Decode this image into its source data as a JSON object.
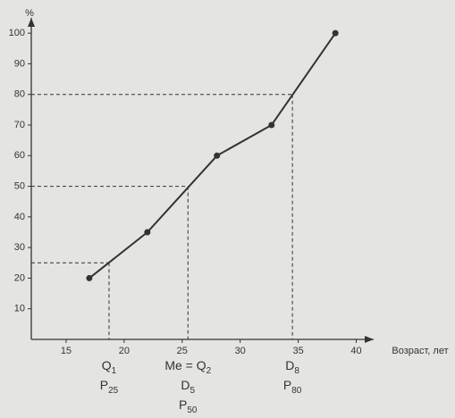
{
  "chart_data": {
    "type": "line",
    "y_label": "%",
    "x_label": "Возраст, лет",
    "x": [
      17,
      22,
      28,
      32.7,
      38.2
    ],
    "series": [
      {
        "color": "#333333",
        "values": [
          20,
          35,
          60,
          70,
          100
        ]
      }
    ],
    "xlim": [
      12,
      41.5
    ],
    "ylim": [
      0,
      105
    ],
    "xticks": [
      15,
      20,
      25,
      30,
      35,
      40
    ],
    "yticks": [
      10,
      20,
      30,
      40,
      50,
      60,
      70,
      80,
      90,
      100
    ],
    "markers": [
      {
        "x": 18.7,
        "y": 25,
        "labels": [
          {
            "base": "Q",
            "sub": "1"
          },
          {
            "base": "P",
            "sub": "25"
          }
        ]
      },
      {
        "x": 25.5,
        "y": 50,
        "labels": [
          {
            "base": "Me = Q",
            "sub": "2"
          },
          {
            "base": "D",
            "sub": "5"
          },
          {
            "base": "P",
            "sub": "50"
          }
        ]
      },
      {
        "x": 34.5,
        "y": 80,
        "labels": [
          {
            "base": "D",
            "sub": "8"
          },
          {
            "base": "P",
            "sub": "80"
          }
        ]
      }
    ]
  }
}
